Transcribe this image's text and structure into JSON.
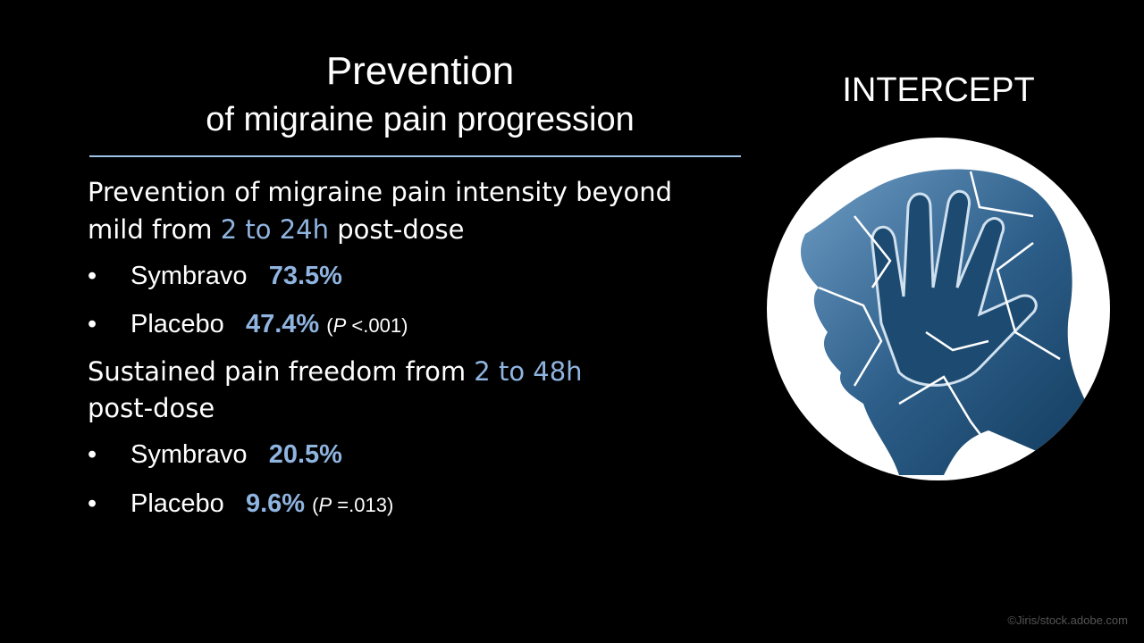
{
  "slide": {
    "title": {
      "line1": "Prevention",
      "line2": "of migraine pain progression"
    },
    "side_title": "INTERCEPT",
    "bullet": "•",
    "sections": [
      {
        "text": [
          "Prevention of migraine pain intensity beyond",
          "mild from ",
          "2 to 24h",
          " post-dose"
        ],
        "items": [
          {
            "label": "Symbravo",
            "value": "73.5%"
          },
          {
            "label": "Placebo",
            "value": "47.4%",
            "note": [
              "(",
              "P",
              " <.001)"
            ]
          }
        ]
      },
      {
        "text": [
          "Sustained pain freedom from ",
          "2 to 48h",
          "post-dose"
        ],
        "items": [
          {
            "label": "Symbravo",
            "value": "20.5%"
          },
          {
            "label": "Placebo",
            "value": "9.6%",
            "note": [
              "(",
              "P",
              " =.013)"
            ]
          }
        ]
      }
    ],
    "credit": "©Jiris/stock.adobe.com"
  }
}
